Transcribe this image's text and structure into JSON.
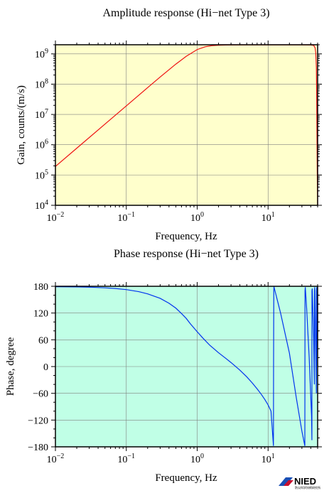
{
  "colors": {
    "amp_bg": "#ffffcc",
    "phase_bg": "#c0ffe6",
    "amp_line": "#ee1111",
    "phase_line": "#0033ee",
    "grid": "#808080",
    "frame": "#000000"
  },
  "logo": {
    "text": "NIED",
    "subtext": "防災科学技術研究所",
    "icon": "nied-logo-icon"
  },
  "chart_data": [
    {
      "type": "line",
      "title": "Amplitude response (Hi−net Type 3)",
      "xlabel": "Frequency, Hz",
      "ylabel": "Gain, counts/(m/s)",
      "xscale": "log",
      "yscale": "log",
      "xlim": [
        0.01,
        50
      ],
      "ylim": [
        10000,
        2000000000
      ],
      "grid": true,
      "x_ticks": [
        {
          "v": 0.01,
          "base": "10",
          "exp": "−2"
        },
        {
          "v": 0.1,
          "base": "10",
          "exp": "−1"
        },
        {
          "v": 1,
          "base": "10",
          "exp": "0"
        },
        {
          "v": 10,
          "base": "10",
          "exp": "1"
        }
      ],
      "y_ticks": [
        {
          "v": 10000,
          "base": "10",
          "exp": "4"
        },
        {
          "v": 100000,
          "base": "10",
          "exp": "5"
        },
        {
          "v": 1000000,
          "base": "10",
          "exp": "6"
        },
        {
          "v": 10000000,
          "base": "10",
          "exp": "7"
        },
        {
          "v": 100000000,
          "base": "10",
          "exp": "8"
        },
        {
          "v": 1000000000,
          "base": "10",
          "exp": "9"
        }
      ],
      "series": [
        {
          "x": [
            0.01,
            0.02,
            0.05,
            0.1,
            0.2,
            0.3,
            0.5,
            0.7,
            1.0,
            1.3,
            1.6,
            2.0,
            2.5,
            3.0,
            5.0,
            10.0,
            20.0,
            30.0,
            40.0,
            44.0,
            46.0,
            47.0,
            48.0,
            48.5,
            49.0,
            49.5,
            50.0
          ],
          "y": [
            192000,
            768000,
            4800000,
            19200000,
            76800000,
            172000000,
            460000000,
            830000000,
            1390000000,
            1720000000,
            1870000000,
            1930000000,
            1960000000,
            1970000000,
            1980000000,
            1980000000,
            1980000000,
            1980000000,
            1970000000,
            1900000000,
            1600000000,
            1100000000,
            350000000,
            30000000,
            1500000,
            70000,
            10000
          ]
        }
      ]
    },
    {
      "type": "line",
      "title": "Phase response (Hi−net Type 3)",
      "xlabel": "Frequency, Hz",
      "ylabel": "Phase, degree",
      "xscale": "log",
      "yscale": "linear",
      "xlim": [
        0.01,
        50
      ],
      "ylim": [
        -180,
        180
      ],
      "grid": true,
      "x_ticks": [
        {
          "v": 0.01,
          "base": "10",
          "exp": "−2"
        },
        {
          "v": 0.1,
          "base": "10",
          "exp": "−1"
        },
        {
          "v": 1,
          "base": "10",
          "exp": "0"
        },
        {
          "v": 10,
          "base": "10",
          "exp": "1"
        }
      ],
      "y_ticks": [
        {
          "v": 180,
          "label": "180"
        },
        {
          "v": 120,
          "label": "120"
        },
        {
          "v": 60,
          "label": "60"
        },
        {
          "v": 0,
          "label": "0"
        },
        {
          "v": -60,
          "label": "−60"
        },
        {
          "v": -120,
          "label": "−120"
        },
        {
          "v": -180,
          "label": "−180"
        }
      ],
      "series": [
        {
          "x": [
            0.01,
            0.02,
            0.03,
            0.05,
            0.07,
            0.1,
            0.15,
            0.2,
            0.3,
            0.4,
            0.5,
            0.6,
            0.7,
            0.8,
            1.0,
            1.2,
            1.5,
            2.0,
            2.5,
            3.0,
            4.0,
            5.0,
            6.0,
            7.0,
            8.0,
            9.0,
            10.0,
            11.0,
            11.9,
            11.95,
            12.0,
            12.05,
            12.1,
            15.0,
            20.0,
            25.0,
            30.0,
            33.0,
            33.2,
            33.5,
            35.0,
            38.0,
            41.0,
            41.5,
            41.6,
            42.0,
            44.0,
            45.0,
            45.1,
            45.5,
            47.0,
            48.0,
            48.1,
            48.5,
            50.0
          ],
          "y": [
            179,
            178.5,
            178,
            176.5,
            175,
            172.5,
            168,
            163,
            153,
            142,
            131,
            119,
            108,
            96,
            78,
            64,
            48,
            31,
            19,
            9,
            -8,
            -23,
            -37,
            -50,
            -62,
            -74,
            -86,
            -100,
            -178,
            0,
            100,
            170,
            179,
            120,
            30,
            -70,
            -145,
            -178,
            170,
            178,
            130,
            20,
            -110,
            -165,
            170,
            175,
            60,
            -40,
            170,
            178,
            40,
            -60,
            170,
            178,
            0
          ]
        }
      ]
    }
  ]
}
